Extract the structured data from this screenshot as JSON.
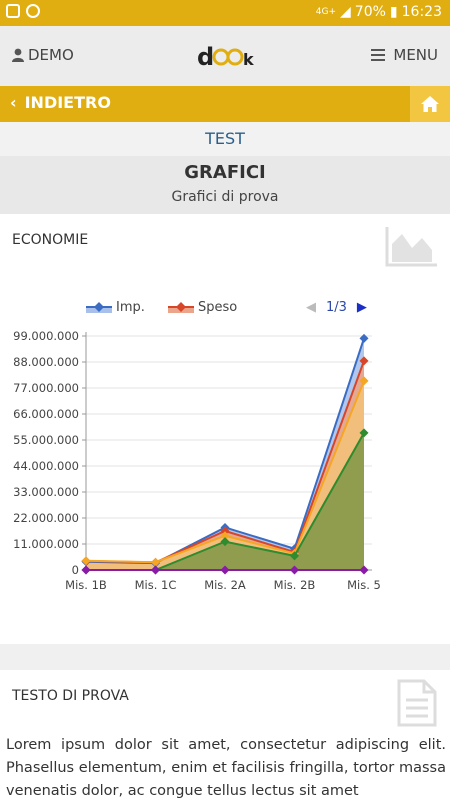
{
  "status": {
    "battery": "70%",
    "time": "16:23",
    "net": "4G+"
  },
  "header": {
    "user_label": "DEMO",
    "menu_label": "MENU",
    "logo_text": "dook"
  },
  "nav": {
    "back_label": "INDIETRO"
  },
  "section": {
    "label": "TEST",
    "title": "GRAFICI",
    "subtitle": "Grafici di prova"
  },
  "chart_card": {
    "title": "ECONOMIE"
  },
  "text_card": {
    "title": "TESTO DI PROVA",
    "body": "Lorem ipsum dolor sit amet, consectetur adipiscing elit. Phasellus elementum, enim et facilisis fringilla, tortor massa venenatis dolor, ac congue tellus lectus sit amet"
  },
  "chart_data": {
    "type": "area",
    "categories": [
      "Mis. 1B",
      "Mis. 1C",
      "Mis. 2A",
      "Mis. 2B",
      "Mis. 5"
    ],
    "ylim": [
      0,
      99000000
    ],
    "yticks": [
      "0",
      "11.000.000",
      "22.000.000",
      "33.000.000",
      "44.000.000",
      "55.000.000",
      "66.000.000",
      "77.000.000",
      "88.000.000",
      "99.000.000"
    ],
    "legend_page": "1/3",
    "series": [
      {
        "name": "Imp.",
        "color": "#3a6cc4",
        "fill": "#a9c1ea",
        "values": [
          3500000,
          2900000,
          18000000,
          9000000,
          98000000
        ]
      },
      {
        "name": "Speso",
        "color": "#d8462a",
        "fill": "#eaa58a",
        "values": [
          3800000,
          3200000,
          16500000,
          7600000,
          88500000
        ]
      },
      {
        "color": "#f5a623",
        "fill": "#f3c07a",
        "values": [
          3900000,
          3300000,
          14500000,
          7000000,
          80000000
        ]
      },
      {
        "color": "#2e8b2e",
        "fill": "#8a9a4c",
        "values": [
          0,
          0,
          12000000,
          6000000,
          58000000
        ]
      },
      {
        "color": "#8a1aa8",
        "fill": "#8a1aa8",
        "values": [
          0,
          0,
          0,
          0,
          0
        ]
      }
    ]
  }
}
